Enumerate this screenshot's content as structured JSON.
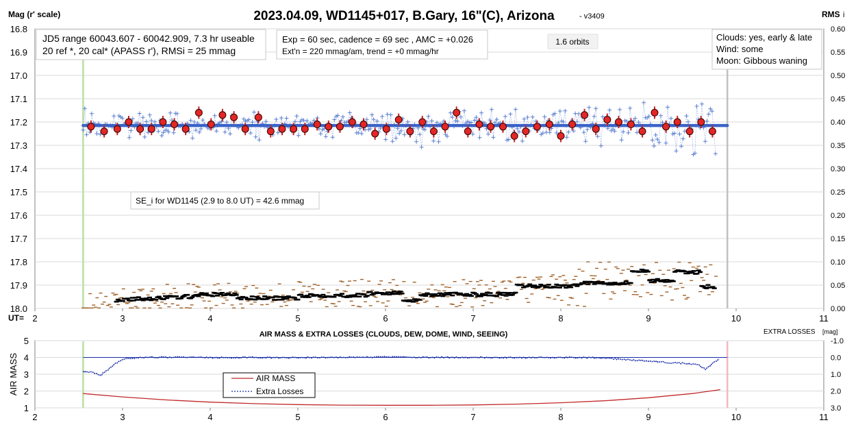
{
  "chart_data": [
    {
      "type": "scatter",
      "title": "2023.04.09, WD1145+017, B.Gary, 16\"(C), Arizona",
      "title_suffix": "- v3409",
      "ylabel": "Mag (r' scale)",
      "y2label": "RMS",
      "y2label_suffix": "i",
      "xlabel": "UT=",
      "xlim": [
        2,
        11
      ],
      "ylim": [
        16.8,
        18.0
      ],
      "y_inverted": true,
      "y2lim": [
        0.0,
        0.6
      ],
      "x_ticks": [
        "2",
        "3",
        "4",
        "5",
        "6",
        "7",
        "8",
        "9",
        "10",
        "11"
      ],
      "y_ticks": [
        "16.8",
        "16.9",
        "17.0",
        "17.1",
        "17.2",
        "17.3",
        "17.4",
        "17.5",
        "17.6",
        "17.7",
        "17.8",
        "17.9",
        "18.0"
      ],
      "y2_ticks": [
        "0.60",
        "0.55",
        "0.50",
        "0.45",
        "0.40",
        "0.35",
        "0.30",
        "0.25",
        "0.20",
        "0.15",
        "0.10",
        "0.05",
        "0.00"
      ],
      "grid": true,
      "annotations": {
        "jd_box": [
          "JD5 range 60043.607 - 60042.909, 7.3 hr useable",
          "20 ref *, 20 cal*  (APASS r'), RMSi = 25 mmag"
        ],
        "exp_box": [
          "Exp = 60 sec, cadence = 69 sec , AMC = +0.026",
          "Ext'n = 220 mmag/am, trend = +0 mmag/hr"
        ],
        "orbits_box": "1.6 orbits",
        "conditions_box": [
          "Clouds: yes, early & late",
          "Wind:    some",
          "Moon:   Gibbous waning"
        ],
        "se_box": "SE_i for WD1145 (2.9 to 8.0 UT) = 42.6 mmag"
      },
      "vertical_markers": {
        "start": 2.55,
        "end": 9.9
      },
      "model_mag": 17.215,
      "colors": {
        "raw": "#5b7fd0",
        "binned": "#e32626",
        "model": "#3a63c8",
        "rms_raw": "#a0622a",
        "rms_running": "#000000",
        "start_line": "#b8e0a0",
        "end_line": "#c0c0c0"
      },
      "series": [
        {
          "values_kind": "binned mag",
          "x": [
            2.64,
            2.79,
            2.94,
            3.07,
            3.2,
            3.33,
            3.46,
            3.59,
            3.72,
            3.87,
            4.01,
            4.14,
            4.27,
            4.4,
            4.55,
            4.69,
            4.82,
            4.95,
            5.08,
            5.22,
            5.35,
            5.48,
            5.62,
            5.75,
            5.88,
            6.01,
            6.15,
            6.28,
            6.42,
            6.55,
            6.68,
            6.81,
            6.94,
            7.07,
            7.2,
            7.34,
            7.47,
            7.6,
            7.73,
            7.87,
            8.0,
            8.13,
            8.27,
            8.4,
            8.53,
            8.66,
            8.8,
            8.93,
            9.07,
            9.2,
            9.33,
            9.47,
            9.6,
            9.73
          ],
          "values": [
            17.22,
            17.24,
            17.23,
            17.2,
            17.23,
            17.23,
            17.2,
            17.21,
            17.23,
            17.16,
            17.21,
            17.17,
            17.18,
            17.23,
            17.18,
            17.24,
            17.23,
            17.23,
            17.23,
            17.21,
            17.22,
            17.22,
            17.2,
            17.21,
            17.25,
            17.23,
            17.19,
            17.24,
            17.2,
            17.24,
            17.22,
            17.16,
            17.24,
            17.21,
            17.22,
            17.22,
            17.26,
            17.24,
            17.22,
            17.21,
            17.26,
            17.21,
            17.17,
            17.23,
            17.19,
            17.2,
            17.21,
            17.24,
            17.16,
            17.22,
            17.2,
            17.24,
            17.2,
            17.24
          ]
        }
      ]
    },
    {
      "type": "line",
      "title": "AIR MASS & EXTRA LOSSES (CLOUDS, DEW, DOME, WIND, SEEING)",
      "ylabel": "AIR MASS",
      "y2label": "EXTRA LOSSES",
      "y2label_unit": "[mag]",
      "xlim": [
        2,
        11
      ],
      "ylim": [
        1,
        5
      ],
      "y2lim": [
        3.0,
        -1.0
      ],
      "x_ticks": [
        "2",
        "3",
        "4",
        "5",
        "6",
        "7",
        "8",
        "9",
        "10",
        "11"
      ],
      "y_ticks": [
        "5",
        "4",
        "3",
        "2",
        "1"
      ],
      "y2_ticks": [
        "-1.0",
        "0.0",
        "1.0",
        "2.0",
        "3.0"
      ],
      "legend": [
        "AIR MASS",
        "Extra Losses"
      ],
      "legend_position": "bottom-left",
      "colors": {
        "air_mass": "#c0282a",
        "extra_losses": "#1b2ea8",
        "start_line": "#b8e0a0",
        "end_line": "#f0b8c0"
      },
      "series": [
        {
          "name": "AIR MASS",
          "x": [
            2.55,
            3.0,
            3.5,
            4.0,
            4.5,
            5.0,
            5.5,
            6.0,
            6.5,
            7.0,
            7.5,
            8.0,
            8.5,
            9.0,
            9.5,
            9.82
          ],
          "values": [
            1.85,
            1.65,
            1.47,
            1.34,
            1.25,
            1.19,
            1.16,
            1.15,
            1.15,
            1.17,
            1.22,
            1.3,
            1.42,
            1.6,
            1.85,
            2.08
          ]
        },
        {
          "name": "Extra Losses",
          "x": [
            2.55,
            2.65,
            2.75,
            2.85,
            2.95,
            3.05,
            3.2,
            3.6,
            4.0,
            4.5,
            5.0,
            5.5,
            6.0,
            6.5,
            7.0,
            7.5,
            8.0,
            8.5,
            8.8,
            9.0,
            9.2,
            9.4,
            9.55,
            9.65,
            9.75,
            9.82
          ],
          "values": [
            0.85,
            0.85,
            1.05,
            0.65,
            0.25,
            0.05,
            0.0,
            -0.02,
            0.02,
            0.0,
            0.02,
            0.0,
            -0.03,
            0.0,
            0.0,
            0.02,
            0.0,
            0.03,
            0.15,
            0.2,
            0.3,
            0.35,
            0.4,
            0.7,
            0.3,
            0.0
          ]
        }
      ]
    }
  ]
}
